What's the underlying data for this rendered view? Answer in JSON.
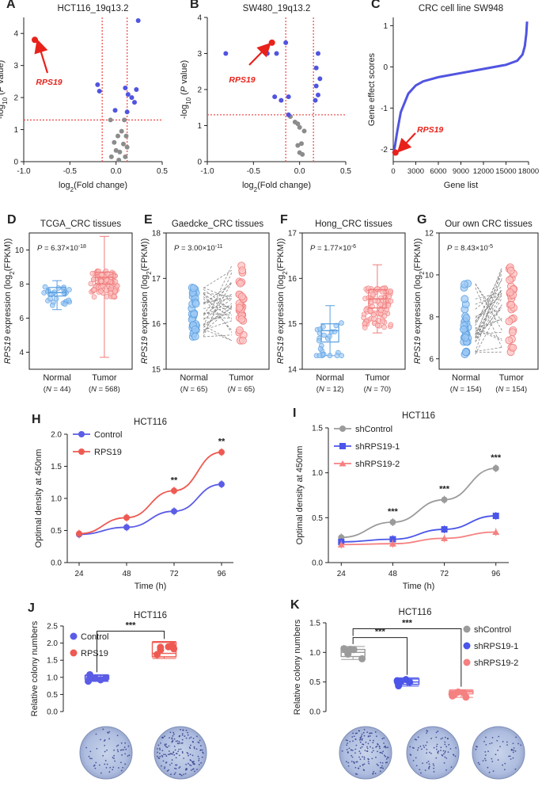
{
  "figure": "Multi-panel figure: RPS19 expression and function in CRC",
  "chart_data": [
    {
      "panel": "A",
      "type": "scatter",
      "title": "HCT116_19q13.2",
      "xlabel": "log2(Fold change)",
      "ylabel": "-log10 (P value)",
      "xlim": [
        -1.0,
        0.5
      ],
      "ylim": [
        0,
        4.5
      ],
      "xticks": [
        "-1.0",
        "-0.5",
        "0.0",
        "0.5"
      ],
      "yticks": [
        "0",
        "1",
        "2",
        "3",
        "4"
      ],
      "thresholds": {
        "x": [
          -0.15,
          0.12
        ],
        "y": 1.3
      },
      "highlight": {
        "label": "RPS19",
        "x": -0.88,
        "y": 3.8
      },
      "blue_points": [
        [
          -0.2,
          2.4
        ],
        [
          -0.18,
          2.2
        ],
        [
          0.1,
          2.3
        ],
        [
          0.13,
          2.1
        ],
        [
          0.17,
          2.0
        ],
        [
          0.2,
          1.85
        ],
        [
          0.22,
          2.25
        ],
        [
          0.24,
          4.4
        ],
        [
          -0.01,
          1.6
        ],
        [
          0.12,
          1.55
        ]
      ],
      "gray_points": [
        [
          -0.06,
          1.3
        ],
        [
          0.09,
          1.3
        ],
        [
          0.06,
          0.95
        ],
        [
          0.02,
          0.8
        ],
        [
          0.11,
          0.8
        ],
        [
          -0.02,
          0.6
        ],
        [
          0.08,
          0.55
        ],
        [
          0.0,
          0.35
        ],
        [
          0.04,
          0.3
        ],
        [
          -0.05,
          0.15
        ],
        [
          0.1,
          0.15
        ],
        [
          0.03,
          0.05
        ],
        [
          0.12,
          0.45
        ]
      ]
    },
    {
      "panel": "B",
      "type": "scatter",
      "title": "SW480_19q13.2",
      "xlabel": "log2(Fold change)",
      "ylabel": "-log10 (P value)",
      "xlim": [
        -1.0,
        0.5
      ],
      "ylim": [
        0,
        4
      ],
      "xticks": [
        "-1.0",
        "-0.5",
        "0.0",
        "0.5"
      ],
      "yticks": [
        "0",
        "1",
        "2",
        "3",
        "4"
      ],
      "thresholds": {
        "x": [
          -0.15,
          0.15
        ],
        "y": 1.3
      },
      "highlight": {
        "label": "RPS19",
        "x": -0.3,
        "y": 3.3
      },
      "blue_points": [
        [
          -0.8,
          3.0
        ],
        [
          -0.35,
          3.0
        ],
        [
          -0.25,
          3.0
        ],
        [
          -0.15,
          3.3
        ],
        [
          -0.27,
          1.8
        ],
        [
          -0.2,
          1.7
        ],
        [
          -0.12,
          1.8
        ],
        [
          0.2,
          3.0
        ],
        [
          0.18,
          2.6
        ],
        [
          0.22,
          2.3
        ],
        [
          0.18,
          2.1
        ],
        [
          0.2,
          1.85
        ],
        [
          0.17,
          1.7
        ],
        [
          -0.12,
          1.3
        ]
      ],
      "gray_points": [
        [
          -0.1,
          1.25
        ],
        [
          -0.05,
          1.1
        ],
        [
          -0.02,
          1.05
        ],
        [
          0.0,
          0.95
        ],
        [
          0.05,
          0.85
        ],
        [
          0.02,
          0.5
        ],
        [
          -0.02,
          0.45
        ],
        [
          0.0,
          0.25
        ],
        [
          0.03,
          0.2
        ]
      ]
    },
    {
      "panel": "C",
      "type": "line",
      "title": "CRC cell line SW948",
      "xlabel": "Gene list",
      "ylabel": "Gene effect scores",
      "xlim": [
        0,
        18000
      ],
      "ylim": [
        -2.3,
        1.2
      ],
      "xticks": [
        "0",
        "3000",
        "6000",
        "9000",
        "12000",
        "15000",
        "18000"
      ],
      "yticks": [
        "-2",
        "-1",
        "0",
        "1"
      ],
      "curve_x": [
        0,
        200,
        500,
        1000,
        2000,
        3000,
        4000,
        6000,
        9000,
        12000,
        15000,
        16500,
        17200,
        17500,
        17700,
        17800
      ],
      "curve_y": [
        -2.1,
        -1.95,
        -1.6,
        -1.1,
        -0.65,
        -0.45,
        -0.35,
        -0.25,
        -0.15,
        -0.05,
        0.05,
        0.15,
        0.3,
        0.5,
        0.8,
        1.1
      ],
      "highlight": {
        "label": "RPS19",
        "x": 300,
        "y": -2.08
      }
    },
    {
      "panel": "D",
      "type": "box",
      "title": "TCGA_CRC tissues",
      "ylabel": "RPS19 expression (log2(FPKM))",
      "ylim": [
        3,
        11
      ],
      "yticks": [
        "4",
        "6",
        "8",
        "10"
      ],
      "pvalue": "P = 6.37×10",
      "pexp": "-18",
      "groups": [
        {
          "name": "Normal",
          "n": "(N = 44)",
          "min": 6.5,
          "q1": 7.3,
          "median": 7.5,
          "q3": 7.8,
          "max": 8.2
        },
        {
          "name": "Tumor",
          "n": "(N = 568)",
          "min": 3.7,
          "q1": 8.0,
          "median": 8.4,
          "q3": 8.7,
          "max": 10.8
        }
      ]
    },
    {
      "panel": "E",
      "type": "paired",
      "title": "Gaedcke_CRC tissues",
      "ylabel": "RPS19 expression (log2(FPKM))",
      "ylim": [
        15,
        18
      ],
      "yticks": [
        "15",
        "16",
        "17",
        "18"
      ],
      "pvalue": "P = 3.00×10",
      "pexp": "-11",
      "groups": [
        {
          "name": "Normal",
          "n": "(N = 65)",
          "min": 15.7,
          "max": 16.8
        },
        {
          "name": "Tumor",
          "n": "(N = 65)",
          "min": 15.6,
          "max": 17.4
        }
      ]
    },
    {
      "panel": "F",
      "type": "box",
      "title": "Hong_CRC tissues",
      "ylabel": "RPS19 expression (log2(FPKM))",
      "ylim": [
        14,
        17
      ],
      "yticks": [
        "14",
        "15",
        "16",
        "17"
      ],
      "pvalue": "P = 1.77×10",
      "pexp": "-6",
      "groups": [
        {
          "name": "Normal",
          "n": "(N = 12)",
          "min": 14.3,
          "q1": 14.6,
          "median": 14.85,
          "q3": 15.0,
          "max": 15.4
        },
        {
          "name": "Tumor",
          "n": "(N = 70)",
          "min": 14.8,
          "q1": 15.35,
          "median": 15.55,
          "q3": 15.75,
          "max": 16.3
        }
      ]
    },
    {
      "panel": "G",
      "type": "paired",
      "title": "Our own CRC tissues",
      "ylabel": "RPS19 expression (log2(FPKM))",
      "ylim": [
        5.5,
        12
      ],
      "yticks": [
        "6",
        "8",
        "10",
        "12"
      ],
      "pvalue": "P = 8.43×10",
      "pexp": "-5",
      "groups": [
        {
          "name": "Normal",
          "n": "(N = 154)",
          "min": 6.2,
          "max": 9.6
        },
        {
          "name": "Tumor",
          "n": "(N = 154)",
          "min": 6.3,
          "max": 10.4
        }
      ]
    },
    {
      "panel": "H",
      "type": "line",
      "title": "HCT116",
      "xlabel": "Time (h)",
      "ylabel": "Optimal density at 450nm",
      "categories": [
        "24",
        "48",
        "72",
        "96"
      ],
      "ylim": [
        0,
        2.0
      ],
      "yticks": [
        "0.0",
        "0.5",
        "1.0",
        "1.5",
        "2.0"
      ],
      "series": [
        {
          "name": "Control",
          "values": [
            0.44,
            0.55,
            0.8,
            1.22
          ],
          "color": "#5b5ce6"
        },
        {
          "name": "RPS19",
          "values": [
            0.45,
            0.7,
            1.12,
            1.72
          ],
          "color": "#ee5a52"
        }
      ],
      "sig": [
        "",
        "",
        "**",
        "**"
      ]
    },
    {
      "panel": "I",
      "type": "line",
      "title": "HCT116",
      "xlabel": "Time (h)",
      "ylabel": "Optimal density at 450nm",
      "categories": [
        "24",
        "48",
        "72",
        "96"
      ],
      "ylim": [
        0,
        1.5
      ],
      "yticks": [
        "0.0",
        "0.5",
        "1.0",
        "1.5"
      ],
      "series": [
        {
          "name": "shControl",
          "values": [
            0.28,
            0.45,
            0.7,
            1.05
          ],
          "color": "#9b9b9b"
        },
        {
          "name": "shRPS19-1",
          "values": [
            0.23,
            0.26,
            0.37,
            0.52
          ],
          "color": "#4b55e8"
        },
        {
          "name": "shRPS19-2",
          "values": [
            0.2,
            0.21,
            0.27,
            0.34
          ],
          "color": "#f58080"
        }
      ],
      "sig": [
        "",
        "***",
        "***",
        "***"
      ]
    },
    {
      "panel": "J",
      "type": "box",
      "title": "HCT116",
      "ylabel": "Relative colony numbers",
      "ylim": [
        0,
        2.5
      ],
      "yticks": [
        "0.0",
        "0.5",
        "1.0",
        "1.5",
        "2.0",
        "2.5"
      ],
      "groups": [
        {
          "name": "Control",
          "min": 0.88,
          "q1": 0.95,
          "median": 1.0,
          "q3": 1.05,
          "max": 1.08,
          "color": "#5b5ce6"
        },
        {
          "name": "RPS19",
          "min": 1.55,
          "q1": 1.6,
          "median": 1.7,
          "q3": 2.02,
          "max": 2.05,
          "color": "#ee5a52"
        }
      ],
      "sig": "***"
    },
    {
      "panel": "K",
      "type": "box",
      "title": "HCT116",
      "ylabel": "Relative colony numbers",
      "ylim": [
        0,
        1.5
      ],
      "yticks": [
        "0.0",
        "0.5",
        "1.0",
        "1.5"
      ],
      "groups": [
        {
          "name": "shControl",
          "min": 0.88,
          "q1": 0.93,
          "median": 1.0,
          "q3": 1.05,
          "max": 1.1,
          "color": "#9b9b9b"
        },
        {
          "name": "shRPS19-1",
          "min": 0.43,
          "q1": 0.46,
          "median": 0.5,
          "q3": 0.55,
          "max": 0.57,
          "color": "#4b55e8"
        },
        {
          "name": "shRPS19-2",
          "min": 0.24,
          "q1": 0.3,
          "median": 0.33,
          "q3": 0.35,
          "max": 0.37,
          "color": "#f58080"
        }
      ],
      "sig": [
        "***",
        "***"
      ]
    }
  ],
  "labels": {
    "A": "A",
    "B": "B",
    "C": "C",
    "D": "D",
    "E": "E",
    "F": "F",
    "G": "G",
    "H": "H",
    "I": "I",
    "J": "J",
    "K": "K"
  }
}
